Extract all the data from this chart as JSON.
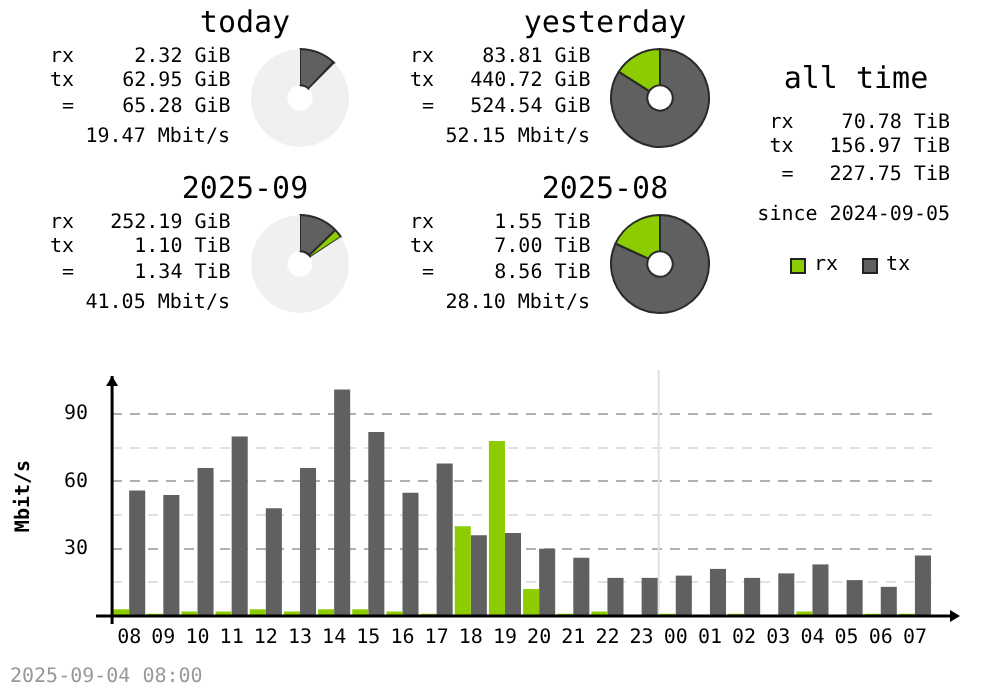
{
  "chart_data": [
    {
      "type": "donut",
      "title": "today",
      "categories": [
        null,
        null,
        null
      ],
      "values": [
        12.0,
        0.44,
        87.56
      ],
      "colors": [
        "#606060",
        "#8ccc00",
        "#f0f0f0"
      ],
      "annotations": [
        "rx     2.32 GiB",
        "tx    62.95 GiB",
        " =    65.28 GiB",
        "19.47 Mbit/s"
      ]
    },
    {
      "type": "donut",
      "title": "yesterday",
      "categories": [
        null,
        null
      ],
      "values": [
        84.02,
        15.98
      ],
      "colors": [
        "#606060",
        "#8ccc00"
      ],
      "annotations": [
        "rx    83.81 GiB",
        "tx   440.72 GiB",
        " =   524.54 GiB",
        "52.15 Mbit/s"
      ]
    },
    {
      "type": "donut",
      "title": "2025-09",
      "categories": [
        null,
        null,
        null
      ],
      "values": [
        12.85,
        2.88,
        84.27
      ],
      "colors": [
        "#606060",
        "#8ccc00",
        "#f0f0f0"
      ],
      "annotations": [
        "rx   252.19 GiB",
        "tx     1.10 TiB",
        " =     1.34 TiB",
        "41.05 Mbit/s"
      ]
    },
    {
      "type": "donut",
      "title": "2025-08",
      "categories": [
        null,
        null
      ],
      "values": [
        81.87,
        18.13
      ],
      "colors": [
        "#606060",
        "#8ccc00"
      ],
      "annotations": [
        "rx     1.55 TiB",
        "tx     7.00 TiB",
        " =     8.56 TiB",
        "28.10 Mbit/s"
      ]
    },
    {
      "type": "other",
      "title": "all time",
      "annotations": [
        "rx    70.78 TiB",
        "tx   156.97 TiB",
        " =   227.75 TiB",
        "since 2024-09-05"
      ]
    },
    {
      "type": "bar",
      "ylabel": "Mbit/s",
      "categories": [
        "08",
        "09",
        "10",
        "11",
        "12",
        "13",
        "14",
        "15",
        "16",
        "17",
        "18",
        "19",
        "20",
        "21",
        "22",
        "23",
        "00",
        "01",
        "02",
        "03",
        "04",
        "05",
        "06",
        "07"
      ],
      "series": [
        {
          "name": "rx",
          "color": "#8ccc00",
          "values": [
            3,
            1,
            2,
            2,
            3,
            2,
            3,
            3,
            2,
            1,
            40,
            78,
            12,
            1,
            2,
            0,
            1,
            0,
            1,
            0,
            2,
            0,
            1,
            1
          ]
        },
        {
          "name": "tx",
          "color": "#606060",
          "values": [
            56,
            54,
            66,
            80,
            48,
            66,
            101,
            82,
            55,
            68,
            36,
            37,
            30,
            26,
            17,
            17,
            18,
            21,
            17,
            19,
            23,
            16,
            13,
            27
          ]
        }
      ],
      "ylim": [
        0,
        107
      ],
      "yticks": [
        {
          "value": 0,
          "label": null
        },
        {
          "value": 15,
          "label": null
        },
        30,
        {
          "value": 45,
          "label": null
        },
        60,
        {
          "value": 75,
          "label": null
        },
        90
      ],
      "grid": "y",
      "legend": "top right",
      "ref_lines": [
        {
          "axis": "x",
          "value": "00",
          "color": "#e0e0e0"
        }
      ],
      "annotations": [
        "2025-09-04 08:00"
      ]
    }
  ]
}
